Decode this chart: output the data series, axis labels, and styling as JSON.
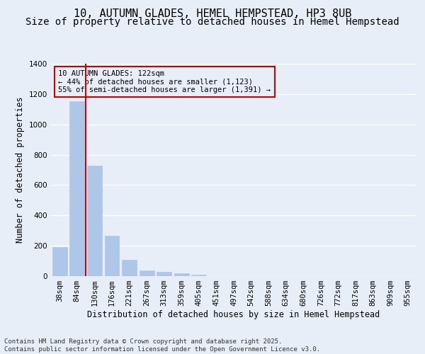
{
  "title_line1": "10, AUTUMN GLADES, HEMEL HEMPSTEAD, HP3 8UB",
  "title_line2": "Size of property relative to detached houses in Hemel Hempstead",
  "xlabel": "Distribution of detached houses by size in Hemel Hempstead",
  "ylabel": "Number of detached properties",
  "categories": [
    "38sqm",
    "84sqm",
    "130sqm",
    "176sqm",
    "221sqm",
    "267sqm",
    "313sqm",
    "359sqm",
    "405sqm",
    "451sqm",
    "497sqm",
    "542sqm",
    "588sqm",
    "634sqm",
    "680sqm",
    "726sqm",
    "772sqm",
    "817sqm",
    "863sqm",
    "909sqm",
    "955sqm"
  ],
  "values": [
    190,
    1155,
    730,
    265,
    108,
    38,
    30,
    20,
    8,
    2,
    0,
    0,
    0,
    0,
    0,
    0,
    0,
    0,
    0,
    0,
    0
  ],
  "bar_color": "#aec6e8",
  "bar_edge_color": "#aec6e8",
  "vline_color": "#cc0000",
  "vline_x_index": 1.5,
  "ylim": [
    0,
    1400
  ],
  "annotation_text": "10 AUTUMN GLADES: 122sqm\n← 44% of detached houses are smaller (1,123)\n55% of semi-detached houses are larger (1,391) →",
  "annotation_box_color": "#cc0000",
  "footer_line1": "Contains HM Land Registry data © Crown copyright and database right 2025.",
  "footer_line2": "Contains public sector information licensed under the Open Government Licence v3.0.",
  "background_color": "#e8eef8",
  "grid_color": "#ffffff",
  "title_fontsize": 11,
  "subtitle_fontsize": 10,
  "axis_label_fontsize": 8.5,
  "tick_fontsize": 7.5,
  "footer_fontsize": 6.5
}
